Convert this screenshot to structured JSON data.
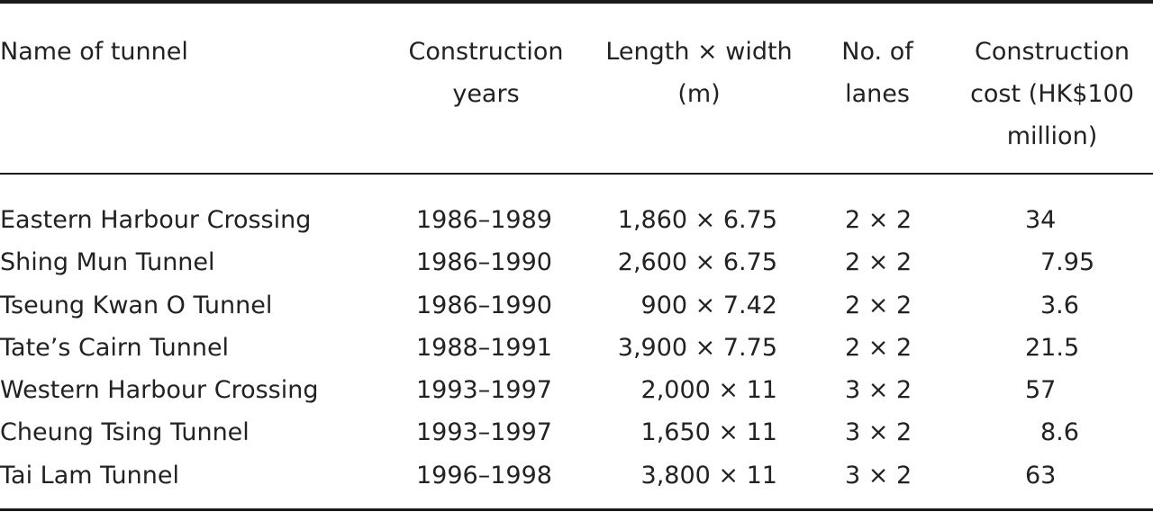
{
  "table": {
    "headers": {
      "name": [
        "Name of tunnel"
      ],
      "years": [
        "Construction",
        "years"
      ],
      "dims": [
        "Length × width",
        "(m)"
      ],
      "lanes": [
        "No. of",
        "lanes"
      ],
      "cost": [
        "Construction",
        "cost (HK$100",
        "million)"
      ]
    },
    "rows": [
      {
        "name": "Eastern Harbour Crossing",
        "years": "1986–1989",
        "dims": "1,860 × 6.75",
        "lanes": "2 × 2",
        "cost": "34"
      },
      {
        "name": "Shing Mun Tunnel",
        "years": "1986–1990",
        "dims": "2,600 × 6.75",
        "lanes": "2 × 2",
        "cost": "7.95"
      },
      {
        "name": "Tseung Kwan O Tunnel",
        "years": "1986–1990",
        "dims": "900 × 7.42",
        "lanes": "2 × 2",
        "cost": "3.6"
      },
      {
        "name": "Tate’s Cairn Tunnel",
        "years": "1988–1991",
        "dims": "3,900 × 7.75",
        "lanes": "2 × 2",
        "cost": "21.5"
      },
      {
        "name": "Western Harbour Crossing",
        "years": "1993–1997",
        "dims": "2,000 × 11",
        "lanes": "3 × 2",
        "cost": "57"
      },
      {
        "name": "Cheung Tsing Tunnel",
        "years": "1993–1997",
        "dims": "1,650 × 11",
        "lanes": "3 × 2",
        "cost": "8.6"
      },
      {
        "name": "Tai Lam Tunnel",
        "years": "1996–1998",
        "dims": "3,800 × 11",
        "lanes": "3 × 2",
        "cost": "63"
      }
    ]
  }
}
